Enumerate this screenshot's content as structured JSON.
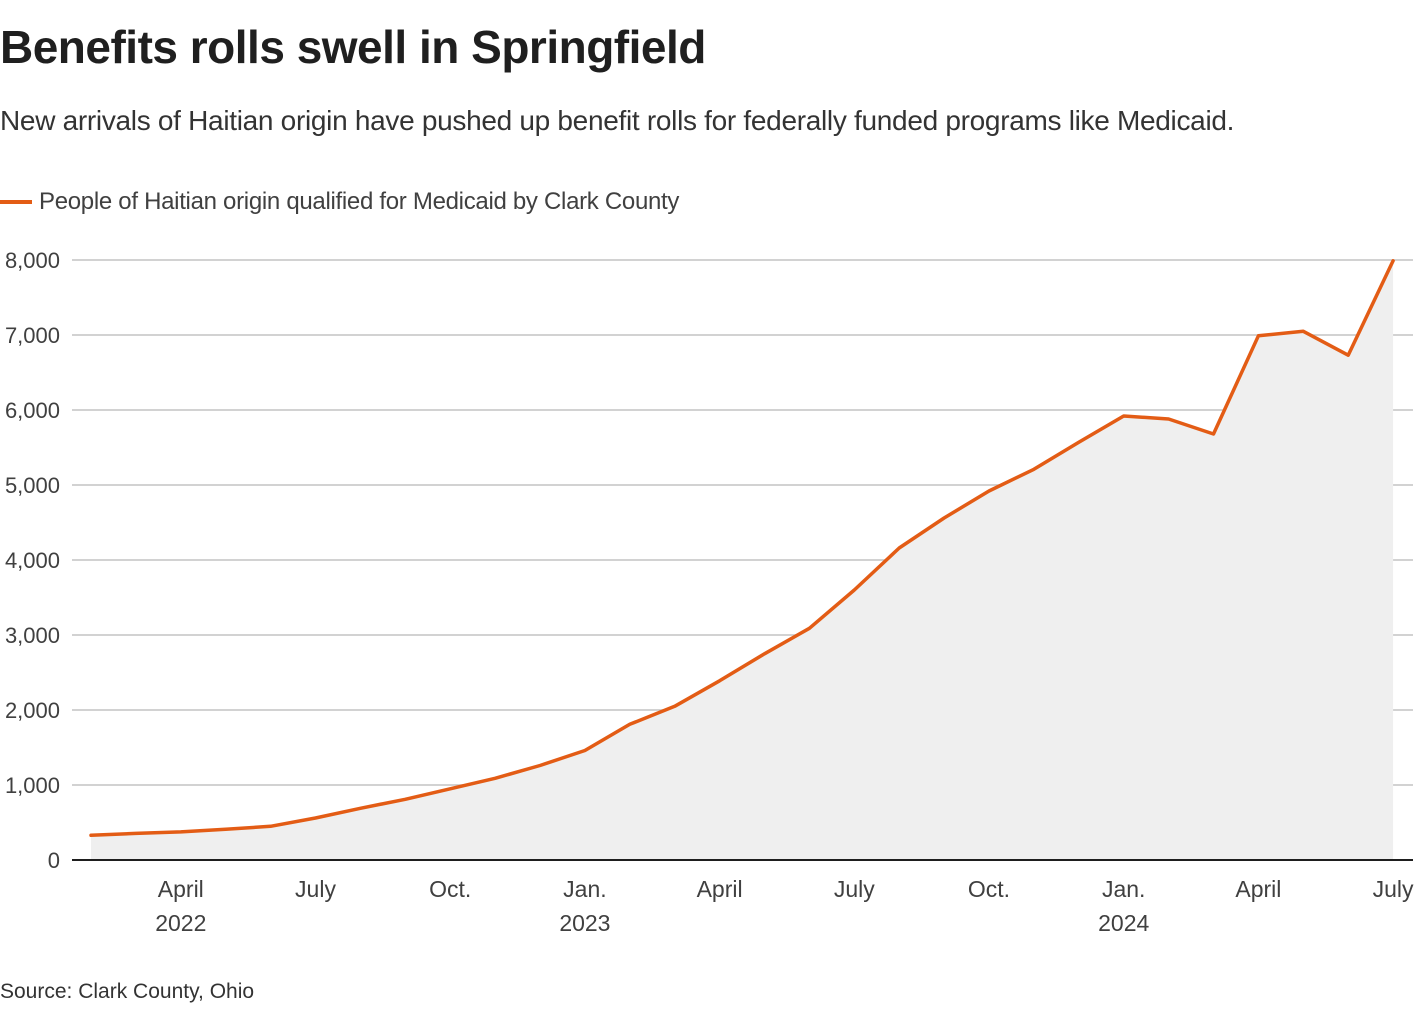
{
  "header": {
    "title": "Benefits rolls swell in Springfield",
    "subtitle": "New arrivals of Haitian origin have pushed up benefit rolls for federally funded programs like Medicaid."
  },
  "footer": {
    "source": "Source: Clark County, Ohio"
  },
  "colors": {
    "line": "#e35c15",
    "area": "#efefef",
    "grid": "#c4c4c4",
    "axis": "#1e1e1e"
  },
  "chart_data": {
    "type": "area",
    "title": "Benefits rolls swell in Springfield",
    "subtitle": "New arrivals of Haitian origin have pushed up benefit rolls for federally funded programs like Medicaid.",
    "xlabel": "",
    "ylabel": "",
    "ylim": [
      0,
      8000
    ],
    "grid": true,
    "legend_position": "top-left",
    "y_ticks": [
      0,
      1000,
      2000,
      3000,
      4000,
      5000,
      6000,
      7000,
      8000
    ],
    "y_tick_labels": [
      "0",
      "1,000",
      "2,000",
      "3,000",
      "4,000",
      "5,000",
      "6,000",
      "7,000",
      "8,000"
    ],
    "x_ticks": [
      {
        "month_index": 2,
        "label": "April",
        "sublabel": "2022"
      },
      {
        "month_index": 5,
        "label": "July",
        "sublabel": ""
      },
      {
        "month_index": 8,
        "label": "Oct.",
        "sublabel": ""
      },
      {
        "month_index": 11,
        "label": "Jan.",
        "sublabel": "2023"
      },
      {
        "month_index": 14,
        "label": "April",
        "sublabel": ""
      },
      {
        "month_index": 17,
        "label": "July",
        "sublabel": ""
      },
      {
        "month_index": 20,
        "label": "Oct.",
        "sublabel": ""
      },
      {
        "month_index": 23,
        "label": "Jan.",
        "sublabel": "2024"
      },
      {
        "month_index": 26,
        "label": "April",
        "sublabel": ""
      },
      {
        "month_index": 29,
        "label": "July",
        "sublabel": ""
      }
    ],
    "x": [
      "2022-02",
      "2022-03",
      "2022-04",
      "2022-05",
      "2022-06",
      "2022-07",
      "2022-08",
      "2022-09",
      "2022-10",
      "2022-11",
      "2022-12",
      "2023-01",
      "2023-02",
      "2023-03",
      "2023-04",
      "2023-05",
      "2023-06",
      "2023-07",
      "2023-08",
      "2023-09",
      "2023-10",
      "2023-11",
      "2023-12",
      "2024-01",
      "2024-02",
      "2024-03",
      "2024-04",
      "2024-05",
      "2024-06",
      "2024-07"
    ],
    "series": [
      {
        "name": "People of Haitian origin qualified for Medicaid by Clark County",
        "values": [
          330,
          355,
          375,
          410,
          450,
          560,
          690,
          810,
          950,
          1090,
          1260,
          1460,
          1810,
          2050,
          2390,
          2750,
          3090,
          3600,
          4160,
          4560,
          4920,
          5210,
          5570,
          5920,
          5880,
          5680,
          6990,
          7050,
          6730,
          7990
        ]
      }
    ]
  }
}
